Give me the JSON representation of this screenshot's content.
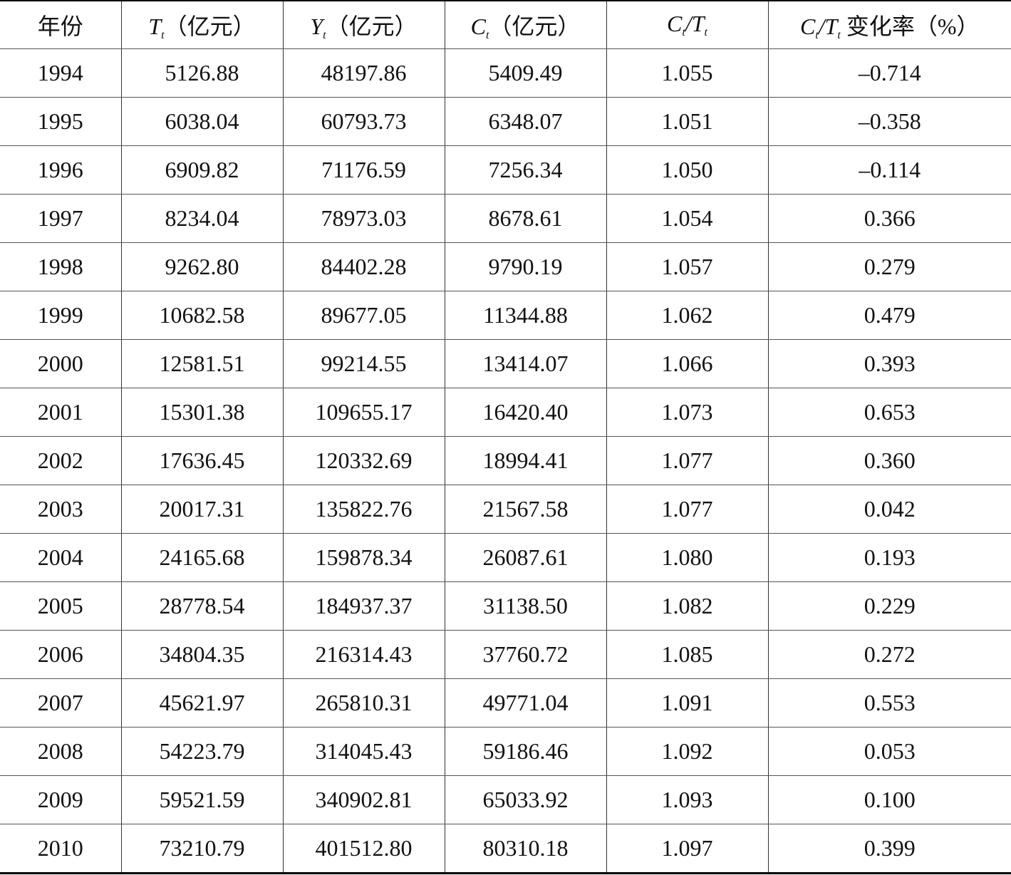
{
  "table": {
    "header": [
      {
        "text": "年份"
      },
      {
        "var": "T",
        "sub": "t",
        "rest": "（亿元）"
      },
      {
        "var": "Y",
        "sub": "t",
        "rest": "（亿元）"
      },
      {
        "var": "C",
        "sub": "t",
        "rest": "（亿元）"
      },
      {
        "var": "C",
        "sub": "t",
        "var2": "/T",
        "sub2": "t"
      },
      {
        "var": "C",
        "sub": "t",
        "var2": "/T",
        "sub2": "t",
        "rest": " 变化率（%）"
      }
    ],
    "rows": [
      [
        "1994",
        "5126.88",
        "48197.86",
        "5409.49",
        "1.055",
        "–0.714"
      ],
      [
        "1995",
        "6038.04",
        "60793.73",
        "6348.07",
        "1.051",
        "–0.358"
      ],
      [
        "1996",
        "6909.82",
        "71176.59",
        "7256.34",
        "1.050",
        "–0.114"
      ],
      [
        "1997",
        "8234.04",
        "78973.03",
        "8678.61",
        "1.054",
        "0.366"
      ],
      [
        "1998",
        "9262.80",
        "84402.28",
        "9790.19",
        "1.057",
        "0.279"
      ],
      [
        "1999",
        "10682.58",
        "89677.05",
        "11344.88",
        "1.062",
        "0.479"
      ],
      [
        "2000",
        "12581.51",
        "99214.55",
        "13414.07",
        "1.066",
        "0.393"
      ],
      [
        "2001",
        "15301.38",
        "109655.17",
        "16420.40",
        "1.073",
        "0.653"
      ],
      [
        "2002",
        "17636.45",
        "120332.69",
        "18994.41",
        "1.077",
        "0.360"
      ],
      [
        "2003",
        "20017.31",
        "135822.76",
        "21567.58",
        "1.077",
        "0.042"
      ],
      [
        "2004",
        "24165.68",
        "159878.34",
        "26087.61",
        "1.080",
        "0.193"
      ],
      [
        "2005",
        "28778.54",
        "184937.37",
        "31138.50",
        "1.082",
        "0.229"
      ],
      [
        "2006",
        "34804.35",
        "216314.43",
        "37760.72",
        "1.085",
        "0.272"
      ],
      [
        "2007",
        "45621.97",
        "265810.31",
        "49771.04",
        "1.091",
        "0.553"
      ],
      [
        "2008",
        "54223.79",
        "314045.43",
        "59186.46",
        "1.092",
        "0.053"
      ],
      [
        "2009",
        "59521.59",
        "340902.81",
        "65033.92",
        "1.093",
        "0.100"
      ],
      [
        "2010",
        "73210.79",
        "401512.80",
        "80310.18",
        "1.097",
        "0.399"
      ]
    ]
  }
}
